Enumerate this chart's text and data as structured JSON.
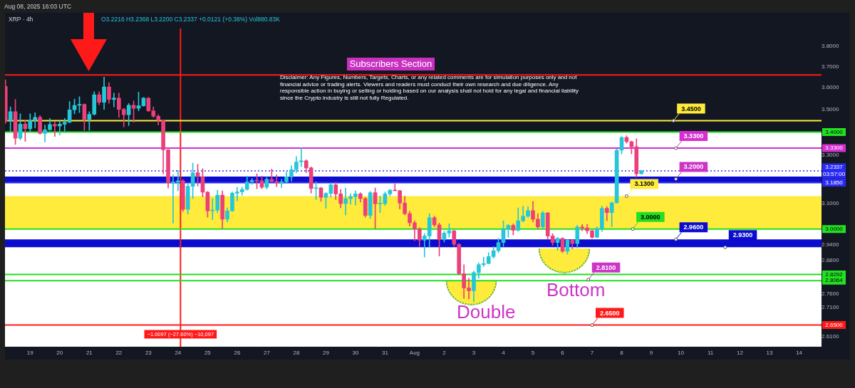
{
  "chart_data": {
    "type": "candlestick",
    "title": "XRP · 4h",
    "subtitle": "O3.2216 H3.2368 L3.2200 C3.2337 +0.0121 (+0.38%) Vol880.83K",
    "x": [
      "2025-07-18T04:00",
      "2025-07-18T08:00",
      "2025-07-18T12:00",
      "2025-07-18T16:00",
      "2025-07-18T20:00",
      "2025-07-19T00:00",
      "2025-07-19T04:00",
      "2025-07-19T08:00",
      "2025-07-19T12:00",
      "2025-07-19T16:00",
      "2025-07-19T20:00",
      "2025-07-20T00:00",
      "2025-07-20T04:00",
      "2025-07-20T08:00",
      "2025-07-20T12:00",
      "2025-07-20T16:00",
      "2025-07-20T20:00",
      "2025-07-21T00:00",
      "2025-07-21T04:00",
      "2025-07-21T08:00",
      "2025-07-21T12:00",
      "2025-07-21T16:00",
      "2025-07-21T20:00",
      "2025-07-22T00:00",
      "2025-07-22T04:00",
      "2025-07-22T08:00",
      "2025-07-22T12:00",
      "2025-07-22T16:00",
      "2025-07-22T20:00",
      "2025-07-23T00:00",
      "2025-07-23T04:00",
      "2025-07-23T08:00",
      "2025-07-23T12:00",
      "2025-07-23T16:00",
      "2025-07-23T20:00",
      "2025-07-24T00:00",
      "2025-07-24T04:00",
      "2025-07-24T08:00",
      "2025-07-24T12:00",
      "2025-07-24T16:00",
      "2025-07-24T20:00",
      "2025-07-25T00:00",
      "2025-07-25T04:00",
      "2025-07-25T08:00",
      "2025-07-25T12:00",
      "2025-07-25T16:00",
      "2025-07-25T20:00",
      "2025-07-26T00:00",
      "2025-07-26T04:00",
      "2025-07-26T08:00",
      "2025-07-26T12:00",
      "2025-07-26T16:00",
      "2025-07-26T20:00",
      "2025-07-27T00:00",
      "2025-07-27T04:00",
      "2025-07-27T08:00",
      "2025-07-27T12:00",
      "2025-07-27T16:00",
      "2025-07-27T20:00",
      "2025-07-28T00:00",
      "2025-07-28T04:00",
      "2025-07-28T08:00",
      "2025-07-28T12:00",
      "2025-07-28T16:00",
      "2025-07-28T20:00",
      "2025-07-29T00:00",
      "2025-07-29T04:00",
      "2025-07-29T08:00",
      "2025-07-29T12:00",
      "2025-07-29T16:00",
      "2025-07-29T20:00",
      "2025-07-30T00:00",
      "2025-07-30T04:00",
      "2025-07-30T08:00",
      "2025-07-30T12:00",
      "2025-07-30T16:00",
      "2025-07-30T20:00",
      "2025-07-31T00:00",
      "2025-07-31T04:00",
      "2025-07-31T08:00",
      "2025-07-31T12:00",
      "2025-07-31T16:00",
      "2025-07-31T20:00",
      "2025-08-01T00:00",
      "2025-08-01T04:00",
      "2025-08-01T08:00",
      "2025-08-01T12:00",
      "2025-08-01T16:00",
      "2025-08-01T20:00",
      "2025-08-02T00:00",
      "2025-08-02T04:00",
      "2025-08-02T08:00",
      "2025-08-02T12:00",
      "2025-08-02T16:00",
      "2025-08-02T20:00",
      "2025-08-03T00:00",
      "2025-08-03T04:00",
      "2025-08-03T08:00",
      "2025-08-03T12:00",
      "2025-08-03T16:00",
      "2025-08-03T20:00",
      "2025-08-04T00:00",
      "2025-08-04T04:00",
      "2025-08-04T08:00",
      "2025-08-04T12:00",
      "2025-08-04T16:00",
      "2025-08-04T20:00",
      "2025-08-05T00:00",
      "2025-08-05T04:00",
      "2025-08-05T08:00",
      "2025-08-05T12:00",
      "2025-08-05T16:00",
      "2025-08-05T20:00",
      "2025-08-06T00:00",
      "2025-08-06T04:00",
      "2025-08-06T08:00",
      "2025-08-06T12:00",
      "2025-08-06T16:00",
      "2025-08-06T20:00",
      "2025-08-07T00:00",
      "2025-08-07T04:00",
      "2025-08-07T08:00",
      "2025-08-07T12:00",
      "2025-08-07T16:00",
      "2025-08-07T20:00",
      "2025-08-08T00:00",
      "2025-08-08T04:00",
      "2025-08-08T08:00",
      "2025-08-08T12:00",
      "2025-08-08T16:00"
    ],
    "ohlc": [
      [
        3.606,
        3.637,
        3.438,
        3.449
      ],
      [
        3.451,
        3.512,
        3.402,
        3.491
      ],
      [
        3.491,
        3.546,
        3.346,
        3.373
      ],
      [
        3.373,
        3.481,
        3.365,
        3.435
      ],
      [
        3.435,
        3.454,
        3.359,
        3.414
      ],
      [
        3.414,
        3.481,
        3.4,
        3.451
      ],
      [
        3.451,
        3.486,
        3.418,
        3.465
      ],
      [
        3.465,
        3.473,
        3.39,
        3.394
      ],
      [
        3.394,
        3.431,
        3.356,
        3.41
      ],
      [
        3.41,
        3.46,
        3.407,
        3.433
      ],
      [
        3.433,
        3.446,
        3.381,
        3.427
      ],
      [
        3.427,
        3.449,
        3.387,
        3.435
      ],
      [
        3.435,
        3.46,
        3.404,
        3.443
      ],
      [
        3.443,
        3.537,
        3.441,
        3.499
      ],
      [
        3.499,
        3.547,
        3.481,
        3.519
      ],
      [
        3.519,
        3.559,
        3.486,
        3.524
      ],
      [
        3.524,
        3.526,
        3.407,
        3.456
      ],
      [
        3.456,
        3.491,
        3.407,
        3.479
      ],
      [
        3.479,
        3.582,
        3.475,
        3.568
      ],
      [
        3.568,
        3.582,
        3.522,
        3.533
      ],
      [
        3.533,
        3.65,
        3.501,
        3.604
      ],
      [
        3.604,
        3.624,
        3.528,
        3.546
      ],
      [
        3.546,
        3.575,
        3.512,
        3.552
      ],
      [
        3.552,
        3.575,
        3.465,
        3.501
      ],
      [
        3.501,
        3.506,
        3.423,
        3.477
      ],
      [
        3.477,
        3.528,
        3.428,
        3.52
      ],
      [
        3.52,
        3.539,
        3.443,
        3.506
      ],
      [
        3.506,
        3.58,
        3.494,
        3.517
      ],
      [
        3.517,
        3.555,
        3.515,
        3.552
      ],
      [
        3.552,
        3.555,
        3.491,
        3.494
      ],
      [
        3.494,
        3.512,
        3.465,
        3.47
      ],
      [
        3.47,
        3.477,
        3.431,
        3.452
      ],
      [
        3.452,
        3.454,
        3.221,
        3.323
      ],
      [
        3.323,
        3.325,
        3.163,
        3.185
      ],
      [
        3.185,
        3.217,
        3.023,
        3.187
      ],
      [
        3.187,
        3.236,
        3.152,
        3.192
      ],
      [
        3.192,
        3.197,
        3.069,
        3.077
      ],
      [
        3.077,
        3.18,
        3.058,
        3.17
      ],
      [
        3.17,
        3.266,
        3.12,
        3.226
      ],
      [
        3.226,
        3.261,
        3.171,
        3.21
      ],
      [
        3.21,
        3.243,
        3.127,
        3.146
      ],
      [
        3.146,
        3.149,
        3.046,
        3.071
      ],
      [
        3.071,
        3.12,
        3.036,
        3.074
      ],
      [
        3.074,
        3.154,
        3.064,
        3.134
      ],
      [
        3.134,
        3.151,
        3.002,
        3.038
      ],
      [
        3.038,
        3.083,
        3.027,
        3.071
      ],
      [
        3.071,
        3.147,
        3.069,
        3.142
      ],
      [
        3.142,
        3.166,
        3.111,
        3.147
      ],
      [
        3.147,
        3.166,
        3.134,
        3.157
      ],
      [
        3.157,
        3.212,
        3.154,
        3.188
      ],
      [
        3.188,
        3.202,
        3.178,
        3.194
      ],
      [
        3.194,
        3.221,
        3.16,
        3.192
      ],
      [
        3.192,
        3.212,
        3.16,
        3.166
      ],
      [
        3.166,
        3.207,
        3.159,
        3.199
      ],
      [
        3.199,
        3.241,
        3.188,
        3.189
      ],
      [
        3.189,
        3.217,
        3.168,
        3.183
      ],
      [
        3.183,
        3.199,
        3.165,
        3.188
      ],
      [
        3.188,
        3.228,
        3.183,
        3.209
      ],
      [
        3.209,
        3.256,
        3.191,
        3.239
      ],
      [
        3.239,
        3.294,
        3.226,
        3.271
      ],
      [
        3.271,
        3.331,
        3.251,
        3.276
      ],
      [
        3.276,
        3.281,
        3.226,
        3.246
      ],
      [
        3.246,
        3.251,
        3.142,
        3.161
      ],
      [
        3.161,
        3.188,
        3.116,
        3.163
      ],
      [
        3.163,
        3.166,
        3.109,
        3.125
      ],
      [
        3.125,
        3.144,
        3.081,
        3.141
      ],
      [
        3.141,
        3.183,
        3.125,
        3.176
      ],
      [
        3.176,
        3.186,
        3.116,
        3.139
      ],
      [
        3.139,
        3.157,
        3.083,
        3.1
      ],
      [
        3.1,
        3.163,
        3.055,
        3.12
      ],
      [
        3.12,
        3.139,
        3.097,
        3.128
      ],
      [
        3.128,
        3.151,
        3.094,
        3.139
      ],
      [
        3.139,
        3.144,
        3.106,
        3.12
      ],
      [
        3.12,
        3.125,
        3.046,
        3.053
      ],
      [
        3.053,
        3.149,
        3.041,
        3.144
      ],
      [
        3.144,
        3.163,
        3.002,
        3.099
      ],
      [
        3.099,
        3.13,
        3.064,
        3.1
      ],
      [
        3.1,
        3.147,
        3.092,
        3.139
      ],
      [
        3.139,
        3.157,
        3.131,
        3.154
      ],
      [
        3.154,
        3.18,
        3.151,
        3.152
      ],
      [
        3.152,
        3.154,
        3.078,
        3.102
      ],
      [
        3.102,
        3.13,
        3.055,
        3.06
      ],
      [
        3.06,
        3.069,
        3.011,
        3.024
      ],
      [
        3.024,
        3.032,
        2.955,
        3.0
      ],
      [
        3.0,
        3.005,
        2.933,
        2.957
      ],
      [
        2.957,
        2.982,
        2.893,
        2.973
      ],
      [
        2.973,
        3.06,
        2.931,
        3.044
      ],
      [
        3.044,
        3.05,
        3.009,
        3.016
      ],
      [
        3.016,
        3.023,
        2.897,
        2.959
      ],
      [
        2.959,
        2.991,
        2.95,
        2.984
      ],
      [
        2.984,
        3.02,
        2.968,
        2.993
      ],
      [
        2.993,
        2.995,
        2.933,
        2.941
      ],
      [
        2.941,
        2.944,
        2.828,
        2.832
      ],
      [
        2.832,
        2.865,
        2.743,
        2.78
      ],
      [
        2.78,
        2.815,
        2.741,
        2.77
      ],
      [
        2.77,
        2.841,
        2.731,
        2.836
      ],
      [
        2.836,
        2.871,
        2.815,
        2.865
      ],
      [
        2.865,
        2.893,
        2.858,
        2.869
      ],
      [
        2.869,
        2.91,
        2.868,
        2.895
      ],
      [
        2.895,
        2.933,
        2.889,
        2.917
      ],
      [
        2.917,
        2.964,
        2.91,
        2.948
      ],
      [
        2.948,
        3.032,
        2.933,
        3.0
      ],
      [
        3.0,
        3.018,
        2.968,
        3.014
      ],
      [
        3.014,
        3.02,
        2.977,
        2.995
      ],
      [
        2.995,
        3.083,
        2.991,
        3.032
      ],
      [
        3.032,
        3.09,
        3.027,
        3.05
      ],
      [
        3.05,
        3.088,
        3.044,
        3.072
      ],
      [
        3.072,
        3.109,
        3.027,
        3.038
      ],
      [
        3.038,
        3.06,
        3.0,
        3.008
      ],
      [
        3.008,
        3.069,
        3.002,
        3.063
      ],
      [
        3.063,
        3.065,
        2.962,
        2.973
      ],
      [
        2.973,
        2.982,
        2.937,
        2.948
      ],
      [
        2.948,
        2.968,
        2.919,
        2.964
      ],
      [
        2.964,
        2.966,
        2.91,
        2.915
      ],
      [
        2.915,
        2.959,
        2.904,
        2.957
      ],
      [
        2.957,
        2.959,
        2.924,
        2.944
      ],
      [
        2.944,
        3.014,
        2.928,
        3.008
      ],
      [
        3.008,
        3.018,
        2.993,
        3.004
      ],
      [
        3.004,
        3.018,
        2.982,
        2.993
      ],
      [
        2.993,
        2.995,
        2.964,
        2.968
      ],
      [
        2.968,
        3.008,
        2.966,
        3.002
      ],
      [
        3.002,
        3.09,
        2.991,
        3.081
      ],
      [
        3.081,
        3.088,
        3.032,
        3.064
      ],
      [
        3.064,
        3.106,
        3.009,
        3.103
      ],
      [
        3.103,
        3.326,
        3.102,
        3.321
      ],
      [
        3.321,
        3.381,
        3.305,
        3.376
      ],
      [
        3.376,
        3.384,
        3.351,
        3.358
      ],
      [
        3.358,
        3.361,
        3.305,
        3.336
      ],
      [
        3.336,
        3.371,
        3.207,
        3.221
      ],
      [
        3.2216,
        3.2368,
        3.22,
        3.2337
      ]
    ],
    "colors": [
      "#ec407a",
      "#26c6da",
      "#ec407a",
      "#26c6da",
      "#ec407a",
      "#26c6da",
      "#26c6da",
      "#ec407a",
      "#26c6da",
      "#26c6da",
      "#ec407a",
      "#26c6da",
      "#26c6da",
      "#26c6da",
      "#26c6da",
      "#26c6da",
      "#ec407a",
      "#26c6da",
      "#26c6da",
      "#ec407a",
      "#26c6da",
      "#ec407a",
      "#26c6da",
      "#ec407a",
      "#ec407a",
      "#26c6da",
      "#ec407a",
      "#26c6da",
      "#26c6da",
      "#ec407a",
      "#ec407a",
      "#ec407a",
      "#ec407a",
      "#ec407a",
      "#26c6da",
      "#26c6da",
      "#ec407a",
      "#26c6da",
      "#26c6da",
      "#ec407a",
      "#ec407a",
      "#ec407a",
      "#26c6da",
      "#26c6da",
      "#ec407a",
      "#26c6da",
      "#26c6da",
      "#26c6da",
      "#26c6da",
      "#26c6da",
      "#26c6da",
      "#ec407a",
      "#ec407a",
      "#26c6da",
      "#ec407a",
      "#ec407a",
      "#26c6da",
      "#26c6da",
      "#26c6da",
      "#26c6da",
      "#26c6da",
      "#ec407a",
      "#ec407a",
      "#26c6da",
      "#ec407a",
      "#26c6da",
      "#26c6da",
      "#ec407a",
      "#ec407a",
      "#26c6da",
      "#26c6da",
      "#26c6da",
      "#ec407a",
      "#ec407a",
      "#26c6da",
      "#ec407a",
      "#26c6da",
      "#26c6da",
      "#26c6da",
      "#ec407a",
      "#ec407a",
      "#ec407a",
      "#ec407a",
      "#ec407a",
      "#ec407a",
      "#26c6da",
      "#26c6da",
      "#ec407a",
      "#ec407a",
      "#26c6da",
      "#26c6da",
      "#ec407a",
      "#ec407a",
      "#ec407a",
      "#ec407a",
      "#26c6da",
      "#26c6da",
      "#26c6da",
      "#26c6da",
      "#26c6da",
      "#26c6da",
      "#26c6da",
      "#26c6da",
      "#ec407a",
      "#26c6da",
      "#26c6da",
      "#26c6da",
      "#ec407a",
      "#ec407a",
      "#26c6da",
      "#ec407a",
      "#ec407a",
      "#26c6da",
      "#ec407a",
      "#26c6da",
      "#ec407a",
      "#26c6da",
      "#ec407a",
      "#ec407a",
      "#ec407a",
      "#26c6da",
      "#26c6da",
      "#ec407a",
      "#26c6da",
      "#26c6da",
      "#26c6da",
      "#ec407a",
      "#ec407a",
      "#ec407a",
      "#26c6da"
    ],
    "xlim": [
      "2025-07-18T03:35",
      "2025-08-14T18:10"
    ],
    "xticks": [
      {
        "value": "2025-07-19",
        "label": "19"
      },
      {
        "value": "2025-07-20",
        "label": "20"
      },
      {
        "value": "2025-07-21",
        "label": "21"
      },
      {
        "value": "2025-07-22",
        "label": "22"
      },
      {
        "value": "2025-07-23",
        "label": "23"
      },
      {
        "value": "2025-07-24",
        "label": "24"
      },
      {
        "value": "2025-07-25",
        "label": "25"
      },
      {
        "value": "2025-07-26",
        "label": "26"
      },
      {
        "value": "2025-07-27",
        "label": "27"
      },
      {
        "value": "2025-07-28",
        "label": "28"
      },
      {
        "value": "2025-07-29",
        "label": "29"
      },
      {
        "value": "2025-07-30",
        "label": "30"
      },
      {
        "value": "2025-07-31",
        "label": "31"
      },
      {
        "value": "2025-08-01",
        "label": "Aug"
      },
      {
        "value": "2025-08-02",
        "label": "2"
      },
      {
        "value": "2025-08-03",
        "label": "3"
      },
      {
        "value": "2025-08-04",
        "label": "4"
      },
      {
        "value": "2025-08-05",
        "label": "5"
      },
      {
        "value": "2025-08-06",
        "label": "6"
      },
      {
        "value": "2025-08-07",
        "label": "7"
      },
      {
        "value": "2025-08-08",
        "label": "8"
      },
      {
        "value": "2025-08-09",
        "label": "9"
      },
      {
        "value": "2025-08-10",
        "label": "10"
      },
      {
        "value": "2025-08-11",
        "label": "11"
      },
      {
        "value": "2025-08-12",
        "label": "12"
      },
      {
        "value": "2025-08-13",
        "label": "13"
      },
      {
        "value": "2025-08-14",
        "label": "14"
      }
    ],
    "ylim": [
      2.577,
      3.887
    ],
    "yticks": [
      {
        "value": 3.8,
        "label": "3.8000"
      },
      {
        "value": 3.7,
        "label": "3.7000"
      },
      {
        "value": 3.6,
        "label": "3.6000"
      },
      {
        "value": 3.5,
        "label": "3.5000"
      },
      {
        "value": 3.3,
        "label": "3.3000"
      },
      {
        "value": 3.1,
        "label": "3.1000"
      },
      {
        "value": 2.94,
        "label": "2.9400"
      },
      {
        "value": 2.88,
        "label": "2.8800"
      },
      {
        "value": 2.76,
        "label": "2.7600"
      },
      {
        "value": 2.71,
        "label": "2.7100"
      },
      {
        "value": 2.61,
        "label": "2.6100"
      }
    ],
    "log": "y",
    "grid": false,
    "bands": [
      {
        "axis": "y",
        "from": 2.577,
        "to": 3.4,
        "color": "#ffffff"
      },
      {
        "axis": "y",
        "from": 3.0,
        "to": 3.13,
        "color": "#ffeb3b"
      },
      {
        "axis": "y",
        "from": 3.185,
        "to": 3.21,
        "color": "#0c0cce"
      },
      {
        "axis": "y",
        "from": 2.93,
        "to": 2.96,
        "color": "#0c0cce"
      }
    ],
    "ref_lines": [
      {
        "axis": "y",
        "value": 3.6597,
        "color": "#ff1a1a"
      },
      {
        "axis": "x",
        "value": "2025-07-24T02:00",
        "color": "#ff1a1a"
      },
      {
        "axis": "y",
        "value": 3.45,
        "color": "#ffeb3b"
      },
      {
        "axis": "y",
        "value": 3.4,
        "label": "3.4000",
        "color": "#22e022"
      },
      {
        "axis": "y",
        "value": 3.33,
        "label": "3.3300",
        "color": "#d42fd0"
      },
      {
        "axis": "y",
        "value": 3.2337,
        "label": "3.2337\n03:57:00",
        "color": "#2a2af5",
        "line_style": "dotted"
      },
      {
        "axis": "y",
        "value": 3.185,
        "label": "3.1850",
        "color": "#2a2af5"
      },
      {
        "axis": "y",
        "value": 3.0,
        "label": "3.0000",
        "color": "#22e022"
      },
      {
        "axis": "y",
        "value": 2.8292,
        "label": "2.8292",
        "color": "#22e022"
      },
      {
        "axis": "y",
        "value": 2.8064,
        "label": "2.8064",
        "color": "#22e022"
      },
      {
        "axis": "y",
        "value": 2.65,
        "label": "2.6500",
        "color": "#ff1a1a"
      }
    ],
    "annotations": [
      "Aug 08, 2025 16:03 UTC",
      "Subscribers Section",
      "Disclaimer: Any Figures, Numbers, Targets, Charts, or any related comments are for simulation purposes only and not financial advice or trading alerts. Viewers and readers must conduct their own research and due diligence. Any responsible action in buying or selling or holding based on our analysis shall not hold for any legal and financial liability since the Crypto industry is still not fully Regulated.",
      "Double",
      "Bottom",
      {
        "text": "3.4500",
        "x": "2025-08-09T18:00",
        "y": 3.45
      },
      {
        "text": "3.3300",
        "x": "2025-08-09T20:00",
        "y": 3.33
      },
      {
        "text": "3.2000",
        "x": "2025-08-09T20:00",
        "y": 3.2
      },
      {
        "text": "3.1300",
        "x": "2025-08-08T04:00",
        "y": 3.13
      },
      {
        "text": "3.0000",
        "x": "2025-08-08T09:00",
        "y": 3.0
      },
      {
        "text": "2.9600",
        "x": "2025-08-09T20:00",
        "y": 2.96
      },
      {
        "text": "2.9300",
        "x": "2025-08-11T12:00",
        "y": 2.93
      },
      {
        "text": "2.8100",
        "x": "2025-08-06T21:00",
        "y": 2.81
      },
      {
        "text": "2.6500",
        "x": "2025-08-07T00:00",
        "y": 2.65
      },
      {
        "text": "−1.0097 (−27.60%) −10,097",
        "x": "2025-07-24T02:00",
        "y": 2.65
      }
    ]
  }
}
